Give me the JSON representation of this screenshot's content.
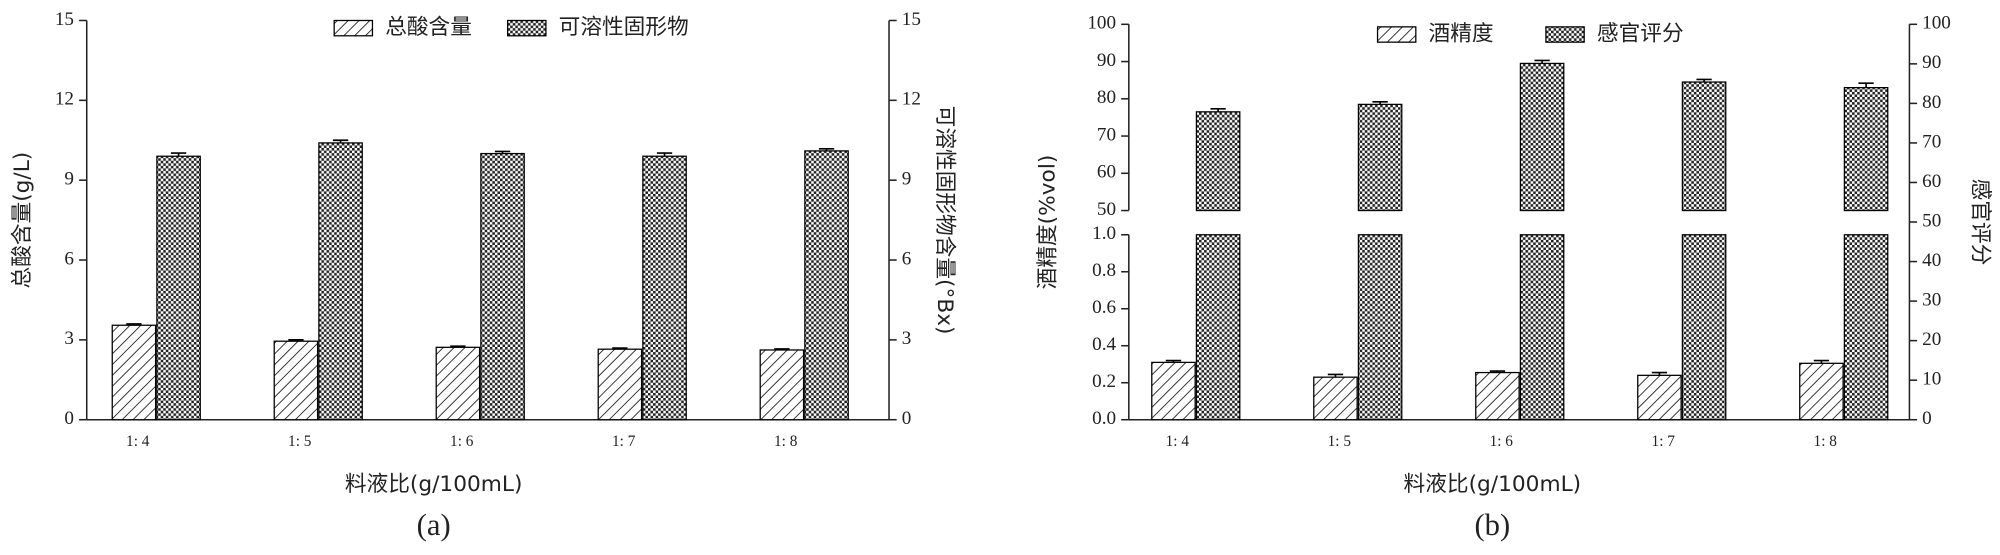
{
  "chart_data": [
    {
      "type": "bar",
      "caption": "(a)",
      "x_label": "料液比(g/100mL)",
      "y_label": "总酸含量(g/L)",
      "y2_label": "可溶性固形物含量(°Bx)",
      "categories": [
        "1: 4",
        "1: 5",
        "1: 6",
        "1: 7",
        "1: 8"
      ],
      "series": [
        {
          "name": "总酸含量",
          "pattern": "hatch",
          "color": "#000000",
          "values": [
            3.55,
            2.95,
            2.72,
            2.65,
            2.62
          ],
          "errors": [
            0.05,
            0.05,
            0.04,
            0.04,
            0.04
          ]
        },
        {
          "name": "可溶性固形物",
          "pattern": "checker",
          "color": "#000000",
          "axis": "y2",
          "values": [
            9.9,
            10.4,
            10.0,
            9.9,
            10.1
          ],
          "errors": [
            0.12,
            0.1,
            0.08,
            0.12,
            0.08
          ]
        }
      ],
      "ylim": [
        0,
        15
      ],
      "yticks": [
        0,
        3,
        6,
        9,
        12,
        15
      ],
      "y2lim": [
        0,
        15
      ],
      "y2ticks": [
        0,
        3,
        6,
        9,
        12,
        15
      ],
      "legend": "top"
    },
    {
      "type": "broken-bar",
      "caption": "(b)",
      "x_label": "料液比(g/100mL)",
      "y_label": "酒精度(%vol)",
      "y2_label": "感官评分",
      "categories": [
        "1: 4",
        "1: 5",
        "1: 6",
        "1: 7",
        "1: 8"
      ],
      "series": [
        {
          "name": "酒精度",
          "pattern": "hatch",
          "color": "#000000",
          "values": [
            0.31,
            0.23,
            0.255,
            0.24,
            0.305
          ],
          "errors": [
            0.01,
            0.015,
            0.008,
            0.015,
            0.015
          ]
        },
        {
          "name": "感官评分",
          "pattern": "checker",
          "color": "#000000",
          "axis": "y_break",
          "values": [
            76.5,
            78.5,
            89.5,
            84.5,
            83
          ],
          "errors": [
            0.8,
            0.7,
            0.8,
            0.7,
            1.2
          ]
        }
      ],
      "ylim": [
        0,
        1
      ],
      "yticks": [
        {
          "value": 0,
          "label": "0.0"
        },
        0.2,
        0.4,
        0.6,
        0.8,
        {
          "value": 1,
          "label": "1.0"
        }
      ],
      "ylim_break": [
        50,
        100
      ],
      "yticks_break": [
        50,
        60,
        70,
        80,
        90,
        100
      ],
      "y2lim": [
        0,
        100
      ],
      "y2ticks": [
        0,
        10,
        20,
        30,
        40,
        50,
        60,
        70,
        80,
        90,
        100
      ],
      "legend": "top"
    }
  ]
}
